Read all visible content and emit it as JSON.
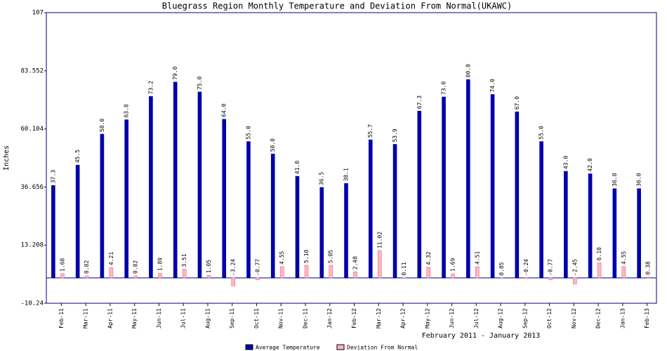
{
  "chart_data": {
    "type": "bar",
    "title": "Bluegrass Region Monthly Temperature and Deviation From Normal(UKAWC)",
    "y_label": "Inches",
    "x_label": "February 2011 - January 2013",
    "categories": [
      "Feb-11",
      "Mar-11",
      "Apr-11",
      "May-11",
      "Jun-11",
      "Jul-11",
      "Aug-11",
      "Sep-11",
      "Oct-11",
      "Nov-11",
      "Dec-11",
      "Jan-12",
      "Feb-12",
      "Mar-12",
      "Apr-12",
      "May-12",
      "Jun-12",
      "Jul-12",
      "Aug-12",
      "Sep-12",
      "Oct-12",
      "Nov-12",
      "Dec-12",
      "Jan-13",
      "Feb-13"
    ],
    "series": [
      {
        "name": "Average Temperature",
        "color": "#0000aa",
        "values": [
          37.3,
          45.5,
          58.0,
          63.8,
          73.2,
          79.0,
          75.0,
          64.0,
          55.0,
          50.0,
          41.0,
          36.5,
          38.1,
          55.7,
          53.9,
          67.3,
          73.0,
          80.0,
          74.0,
          67.0,
          55.0,
          43.0,
          42.0,
          36.0,
          36.0
        ],
        "value_labels": [
          "37.3",
          "45.5",
          "58.0",
          "63.8",
          "73.2",
          "79.0",
          "75.0",
          "64.0",
          "55.0",
          "50.0",
          "41.0",
          "36.5",
          "38.1",
          "55.7",
          "53.9",
          "67.3",
          "73.0",
          "80.0",
          "74.0",
          "67.0",
          "55.0",
          "43.0",
          "42.0",
          "36.0",
          "36.0"
        ]
      },
      {
        "name": "Deviation From Normal",
        "color": "#ffb6c1",
        "values": [
          1.68,
          0.82,
          4.21,
          0.82,
          1.89,
          3.51,
          1.05,
          -3.24,
          -0.77,
          4.55,
          5.1,
          5.05,
          2.48,
          11.02,
          0.11,
          4.32,
          1.69,
          4.51,
          0.05,
          -0.24,
          -0.77,
          -2.45,
          6.1,
          4.55,
          0.38
        ],
        "value_labels": [
          "1.68",
          "0.82",
          "4.21",
          "0.82",
          "1.89",
          "3.51",
          "1.05",
          "-3.24",
          "-0.77",
          "4.55",
          "5.10",
          "5.05",
          "2.48",
          "11.02",
          "0.11",
          "4.32",
          "1.69",
          "4.51",
          "0.05",
          "-0.24",
          "-0.77",
          "-2.45",
          "6.10",
          "4.55",
          "0.38"
        ]
      }
    ],
    "ylim": [
      -10.24,
      107
    ],
    "yticks": [
      -10.24,
      13.208,
      36.656,
      60.104,
      83.552,
      107
    ],
    "grid": false
  }
}
